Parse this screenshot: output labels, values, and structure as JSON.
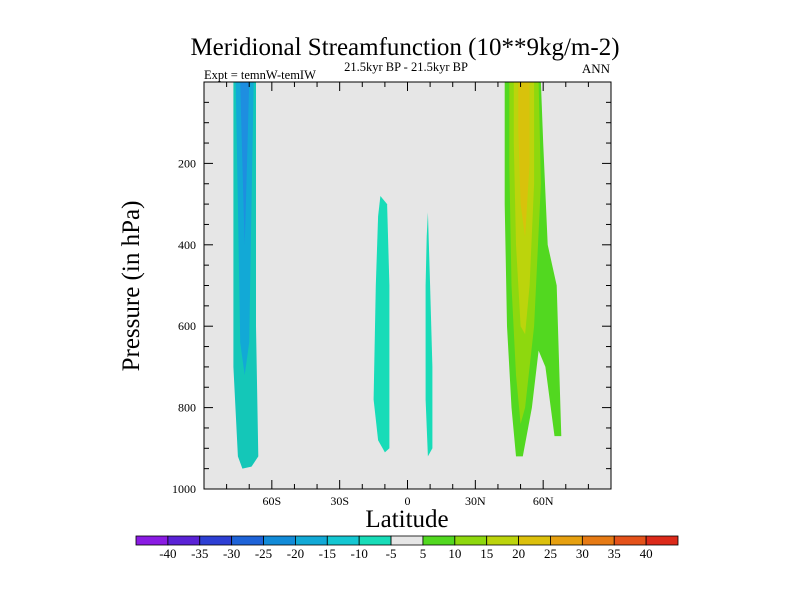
{
  "chart_data": {
    "type": "filled-contour",
    "title": "Meridional Streamfunction (10**9kg/m-2)",
    "left_label": "Expt = temnW-temIW",
    "center_label": "21.5kyr BP - 21.5kyr BP",
    "right_label": "ANN",
    "xlabel": "Latitude",
    "ylabel": "Pressure (in hPa)",
    "xlim": [
      -90,
      90
    ],
    "ylim": [
      0,
      1000
    ],
    "y_inverted": true,
    "x_ticks": [
      {
        "value": -60,
        "label": "60S"
      },
      {
        "value": -30,
        "label": "30S"
      },
      {
        "value": 0,
        "label": "0"
      },
      {
        "value": 30,
        "label": "30N"
      },
      {
        "value": 60,
        "label": "60N"
      }
    ],
    "y_ticks": [
      {
        "value": 200,
        "label": "200"
      },
      {
        "value": 400,
        "label": "400"
      },
      {
        "value": 600,
        "label": "600"
      },
      {
        "value": 800,
        "label": "800"
      },
      {
        "value": 1000,
        "label": "1000"
      }
    ],
    "background_color": "#e6e6e6",
    "colorbar": {
      "labels": [
        "-40",
        "-35",
        "-30",
        "-25",
        "-20",
        "-15",
        "-10",
        "-5",
        "5",
        "10",
        "15",
        "20",
        "25",
        "30",
        "35",
        "40"
      ],
      "colors": [
        "#8a1be3",
        "#5a22d6",
        "#2d3fd4",
        "#1e63d8",
        "#128bd8",
        "#12a9d6",
        "#14c7d2",
        "#18dcb8",
        "#e6e6e6",
        "#52d820",
        "#8ed80e",
        "#bcd40c",
        "#dcc00c",
        "#e6a010",
        "#e67a14",
        "#e4521a",
        "#dc2a1a"
      ]
    },
    "regions": [
      {
        "name": "sh-polar-cell-outer",
        "color": "#14c7b8",
        "points": [
          [
            -77,
            0
          ],
          [
            -67,
            0
          ],
          [
            -67,
            600
          ],
          [
            -66,
            920
          ],
          [
            -69,
            945
          ],
          [
            -73,
            950
          ],
          [
            -75,
            920
          ],
          [
            -77,
            700
          ]
        ]
      },
      {
        "name": "sh-polar-cell-core",
        "color": "#12a9d6",
        "points": [
          [
            -76,
            0
          ],
          [
            -68,
            0
          ],
          [
            -69,
            300
          ],
          [
            -70,
            640
          ],
          [
            -72,
            720
          ],
          [
            -74,
            640
          ],
          [
            -75,
            300
          ]
        ]
      },
      {
        "name": "sh-polar-cell-center",
        "color": "#1e8ee0",
        "points": [
          [
            -74,
            0
          ],
          [
            -70,
            0
          ],
          [
            -71,
            200
          ],
          [
            -72,
            400
          ],
          [
            -73,
            200
          ]
        ]
      },
      {
        "name": "tropics-south-cell",
        "color": "#18dcb8",
        "points": [
          [
            -12,
            280
          ],
          [
            -9,
            300
          ],
          [
            -8,
            500
          ],
          [
            -8,
            750
          ],
          [
            -8,
            900
          ],
          [
            -10,
            910
          ],
          [
            -13,
            880
          ],
          [
            -15,
            780
          ],
          [
            -14,
            500
          ],
          [
            -13,
            330
          ]
        ]
      },
      {
        "name": "tropics-north-cell",
        "color": "#18dcb8",
        "points": [
          [
            9,
            320
          ],
          [
            10,
            500
          ],
          [
            11,
            700
          ],
          [
            11,
            900
          ],
          [
            9,
            920
          ],
          [
            8,
            780
          ],
          [
            8,
            500
          ],
          [
            8.5,
            380
          ]
        ]
      },
      {
        "name": "nh-cell-outer",
        "color": "#52d820",
        "points": [
          [
            43,
            0
          ],
          [
            59,
            0
          ],
          [
            60,
            150
          ],
          [
            62,
            400
          ],
          [
            66,
            500
          ],
          [
            68,
            870
          ],
          [
            65,
            870
          ],
          [
            61,
            700
          ],
          [
            58,
            660
          ],
          [
            55,
            800
          ],
          [
            51,
            920
          ],
          [
            48,
            920
          ],
          [
            46,
            800
          ],
          [
            44,
            600
          ],
          [
            43,
            300
          ]
        ]
      },
      {
        "name": "nh-cell-mid",
        "color": "#8ed80e",
        "points": [
          [
            45,
            0
          ],
          [
            58,
            0
          ],
          [
            59,
            250
          ],
          [
            56,
            600
          ],
          [
            52,
            800
          ],
          [
            50,
            840
          ],
          [
            48,
            720
          ],
          [
            46,
            500
          ],
          [
            45,
            200
          ]
        ]
      },
      {
        "name": "nh-cell-core",
        "color": "#bcd40c",
        "points": [
          [
            47,
            0
          ],
          [
            56,
            0
          ],
          [
            56,
            250
          ],
          [
            54,
            500
          ],
          [
            52,
            620
          ],
          [
            50,
            600
          ],
          [
            48,
            400
          ],
          [
            47,
            150
          ]
        ]
      },
      {
        "name": "nh-cell-center",
        "color": "#d8c20c",
        "points": [
          [
            49,
            0
          ],
          [
            54,
            0
          ],
          [
            54,
            200
          ],
          [
            52,
            380
          ],
          [
            50,
            300
          ],
          [
            49,
            120
          ]
        ]
      }
    ]
  }
}
